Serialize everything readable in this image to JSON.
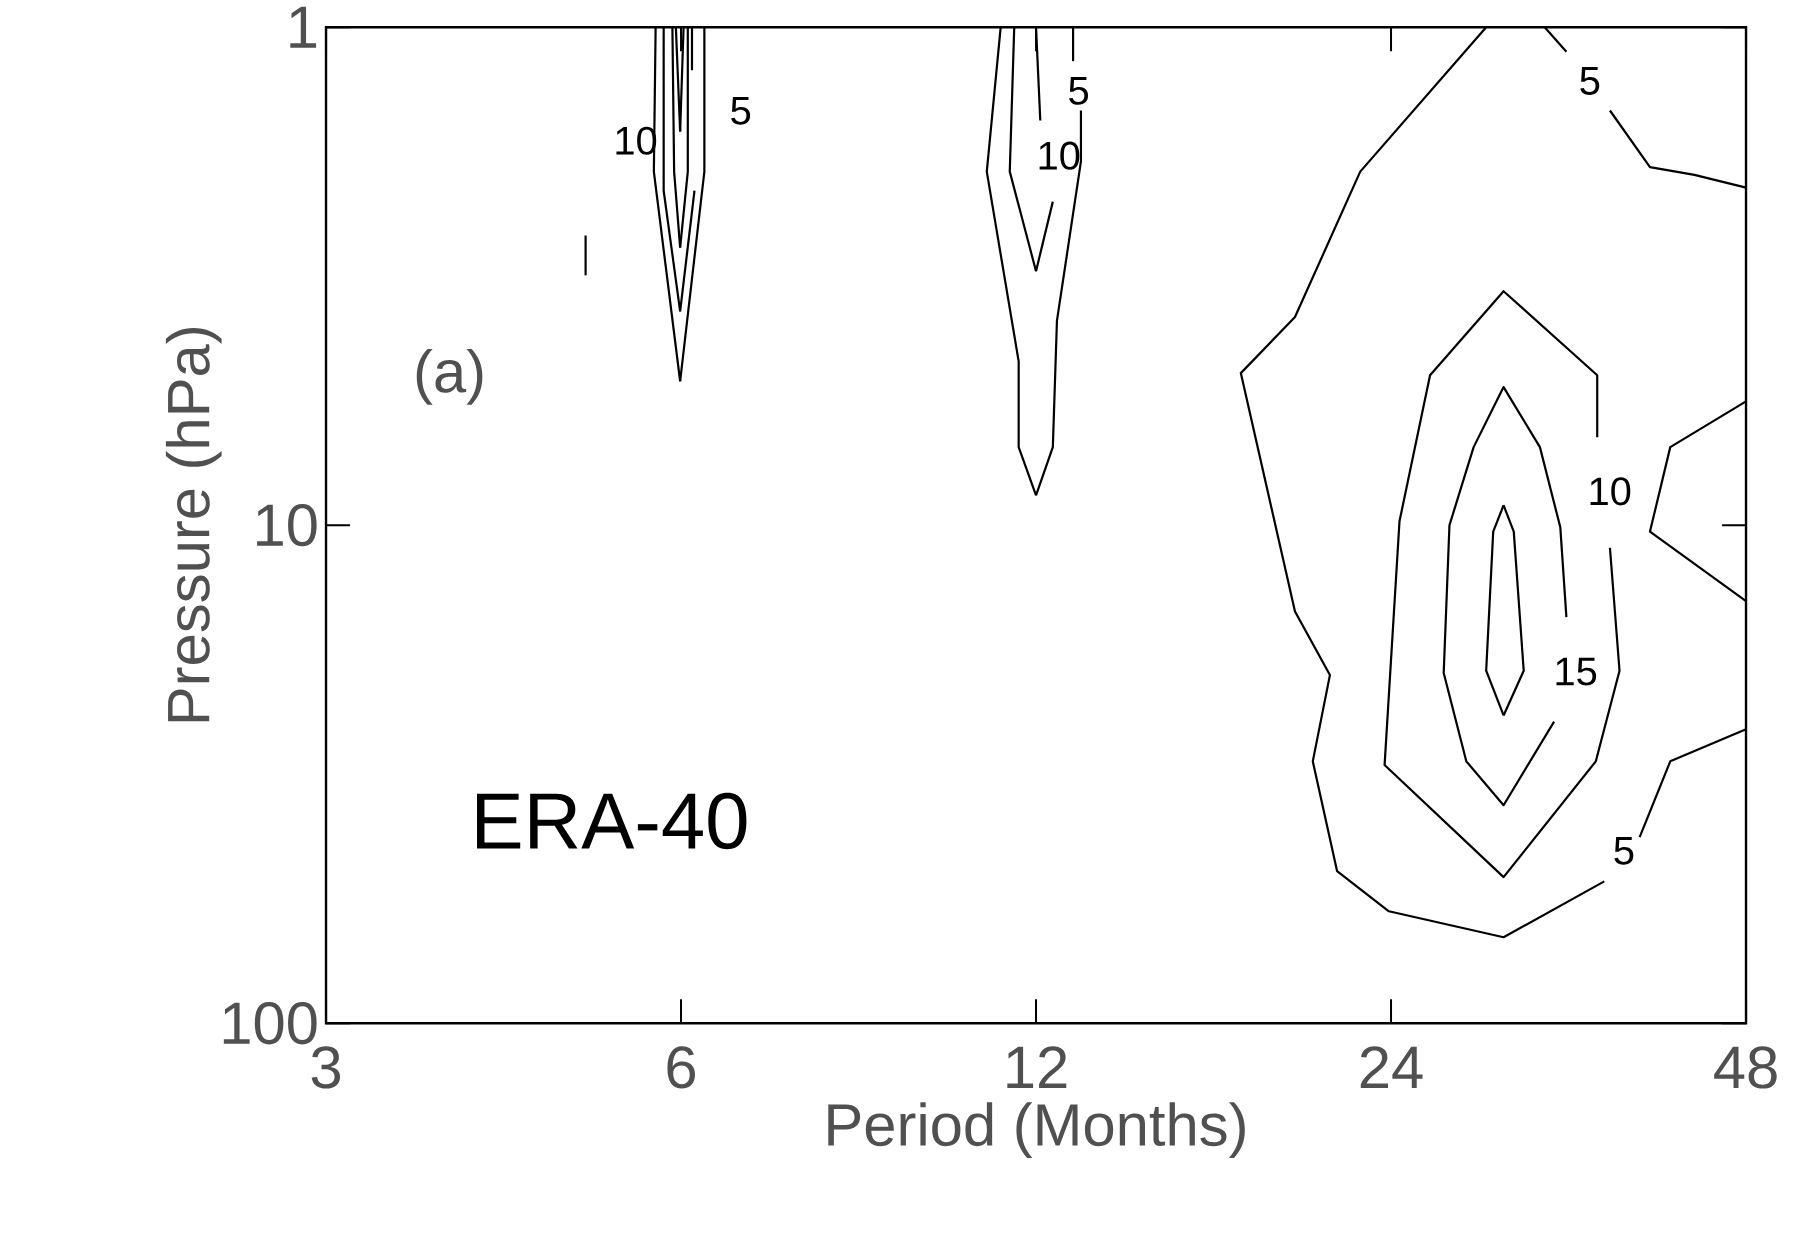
{
  "chart_data": {
    "type": "line",
    "xlabel": "Period (Months)",
    "ylabel": "Pressure (hPa)",
    "log": "xy",
    "xlim": [
      3,
      48
    ],
    "xticks": [
      3,
      6,
      12,
      24,
      48
    ],
    "ylim": [
      100,
      1
    ],
    "yticks": [
      1,
      10,
      100
    ],
    "series": [
      {
        "color": "#000000",
        "x": [
          28.9,
          22.6,
          19.9,
          17.9,
          19.9,
          21.3,
          20.6,
          21.6,
          23.9,
          29.9,
          36.4
        ],
        "values": [
          1,
          1.95,
          3.82,
          4.95,
          14.9,
          20.0,
          29.8,
          49.5,
          59.6,
          67.2,
          51.9
        ]
      },
      {
        "color": "#000000",
        "x": [
          39.0,
          41.4,
          48
        ],
        "values": [
          42.3,
          29.8,
          25.7
        ]
      },
      {
        "color": "#000000",
        "x": [
          32.4,
          33.8
        ],
        "values": [
          1,
          1.12
        ]
      },
      {
        "color": "#000000",
        "x": [
          36.8,
          39.8,
          43.4,
          48
        ],
        "values": [
          1.47,
          1.91,
          1.98,
          2.1
        ]
      },
      {
        "color": "#000000",
        "x": [
          48,
          41.4,
          39.8,
          48
        ],
        "values": [
          5.64,
          6.97,
          10.3,
          14.2
        ]
      },
      {
        "color": "#000000",
        "x": [
          36.8,
          37.5,
          35.8,
          29.9,
          23.7,
          24.4,
          25.9,
          29.9,
          35.9,
          35.9
        ],
        "values": [
          11.1,
          19.6,
          29.8,
          50.9,
          30.3,
          9.82,
          5.0,
          3.39,
          5.0,
          6.66
        ]
      },
      {
        "color": "#000000",
        "x": [
          33.0,
          29.9,
          27.8,
          26.6,
          26.9,
          28.2,
          29.9,
          32.1,
          33.4,
          33.8
        ],
        "values": [
          24.8,
          36.5,
          29.8,
          19.8,
          10.0,
          6.97,
          5.28,
          6.97,
          10.1,
          15.3
        ]
      },
      {
        "color": "#000000",
        "x": [
          29.9,
          29.3,
          28.9,
          29.9
        ],
        "values": [
          9.12,
          10.3,
          19.6,
          24.1
        ]
      },
      {
        "color": "#000000",
        "x": [
          29.9,
          30.5,
          31.1,
          29.9
        ],
        "values": [
          9.12,
          10.3,
          19.6,
          24.1
        ]
      },
      {
        "color": "#000000",
        "x": [
          11.2,
          10.9,
          11.6,
          11.6,
          12.0
        ],
        "values": [
          1,
          1.95,
          4.69,
          6.97,
          8.71
        ]
      },
      {
        "color": "#000000",
        "x": [
          12.0,
          12.4,
          12.5,
          13.1,
          13.1
        ],
        "values": [
          8.71,
          6.97,
          3.89,
          1.86,
          1.47
        ]
      },
      {
        "color": "#000000",
        "x": [
          12.9,
          12.9
        ],
        "values": [
          1.17,
          1
        ]
      },
      {
        "color": "#000000",
        "x": [
          11.5,
          11.4,
          12.0
        ],
        "values": [
          1,
          1.95,
          3.09
        ]
      },
      {
        "color": "#000000",
        "x": [
          12.0,
          12.4
        ],
        "values": [
          3.09,
          2.24
        ]
      },
      {
        "color": "#000000",
        "x": [
          12.1,
          12.0
        ],
        "values": [
          1.54,
          1
        ]
      },
      {
        "color": "#000000",
        "x": [
          5.71,
          5.69,
          5.99
        ],
        "values": [
          1,
          1.95,
          5.14
        ]
      },
      {
        "color": "#000000",
        "x": [
          5.99,
          6.28,
          6.28
        ],
        "values": [
          5.14,
          1.95,
          1
        ]
      },
      {
        "color": "#000000",
        "x": [
          5.8,
          5.8,
          5.99
        ],
        "values": [
          1,
          2.13,
          3.72
        ]
      },
      {
        "color": "#000000",
        "x": [
          5.99,
          6.16
        ],
        "values": [
          3.72,
          2.13
        ]
      },
      {
        "color": "#000000",
        "x": [
          6.13,
          6.13
        ],
        "values": [
          1.22,
          1
        ]
      },
      {
        "color": "#000000",
        "x": [
          5.9,
          5.92,
          5.99
        ],
        "values": [
          1,
          1.95,
          2.77
        ]
      },
      {
        "color": "#000000",
        "x": [
          5.99,
          6.08,
          6.08
        ],
        "values": [
          2.77,
          1.95,
          1
        ]
      },
      {
        "color": "#000000",
        "x": [
          5.94,
          5.99
        ],
        "values": [
          1,
          1.62
        ]
      },
      {
        "color": "#000000",
        "x": [
          5.99,
          6.03
        ],
        "values": [
          1.62,
          1
        ]
      },
      {
        "color": "#000000",
        "x": [
          4.98,
          4.98
        ],
        "values": [
          2.62,
          3.15
        ]
      }
    ],
    "annotations": [
      "5",
      "5",
      "10",
      "15",
      "5",
      "10",
      "5",
      "10",
      "(a)",
      "ERA-40"
    ]
  }
}
